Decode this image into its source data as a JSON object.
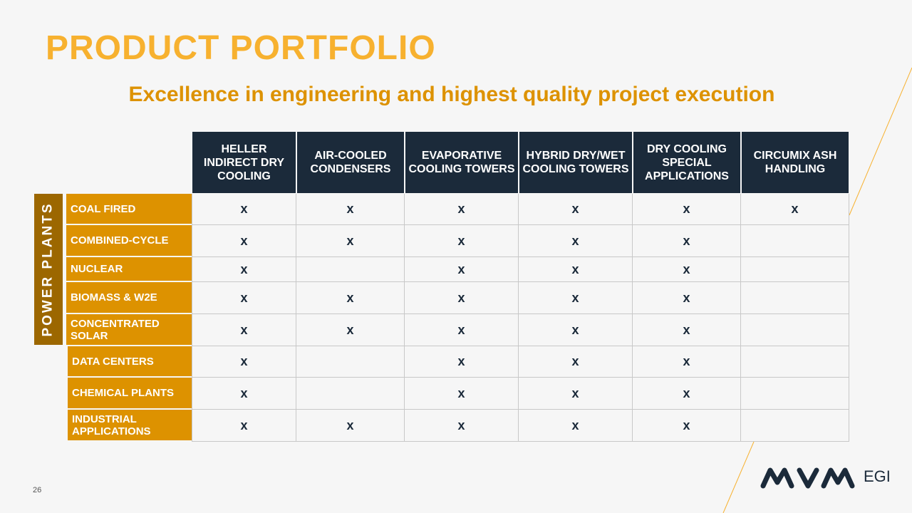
{
  "title": "PRODUCT PORTFOLIO",
  "subtitle": "Excellence in engineering and highest quality project execution",
  "columns": [
    "HELLER INDIRECT DRY COOLING",
    "AIR-COOLED CONDENSERS",
    "EVAPORATIVE COOLING TOWERS",
    "HYBRID DRY/WET COOLING TOWERS",
    "DRY COOLING SPECIAL APPLICATIONS",
    "CIRCUMIX ASH HANDLING"
  ],
  "group_label": "POWER PLANTS",
  "rows": [
    {
      "label": "COAL FIRED",
      "marks": [
        "x",
        "x",
        "x",
        "x",
        "x",
        "x"
      ]
    },
    {
      "label": "COMBINED-CYCLE",
      "marks": [
        "x",
        "x",
        "x",
        "x",
        "x",
        ""
      ]
    },
    {
      "label": "NUCLEAR",
      "marks": [
        "x",
        "",
        "x",
        "x",
        "x",
        ""
      ]
    },
    {
      "label": "BIOMASS & W2E",
      "marks": [
        "x",
        "x",
        "x",
        "x",
        "x",
        ""
      ]
    },
    {
      "label": "CONCENTRATED SOLAR",
      "marks": [
        "x",
        "x",
        "x",
        "x",
        "x",
        ""
      ]
    },
    {
      "label": "DATA CENTERS",
      "marks": [
        "x",
        "",
        "x",
        "x",
        "x",
        ""
      ]
    },
    {
      "label": "CHEMICAL PLANTS",
      "marks": [
        "x",
        "",
        "x",
        "x",
        "x",
        ""
      ]
    },
    {
      "label": "INDUSTRIAL APPLICATIONS",
      "marks": [
        "x",
        "x",
        "x",
        "x",
        "x",
        ""
      ]
    }
  ],
  "page_number": "26",
  "logo": {
    "brand": "MVM",
    "suffix": "EGI"
  },
  "colors": {
    "title": "#f7b12f",
    "subtitle": "#dd9200",
    "header": "#1b2a3a",
    "row_label": "#dd9200",
    "group": "#9c6700"
  }
}
